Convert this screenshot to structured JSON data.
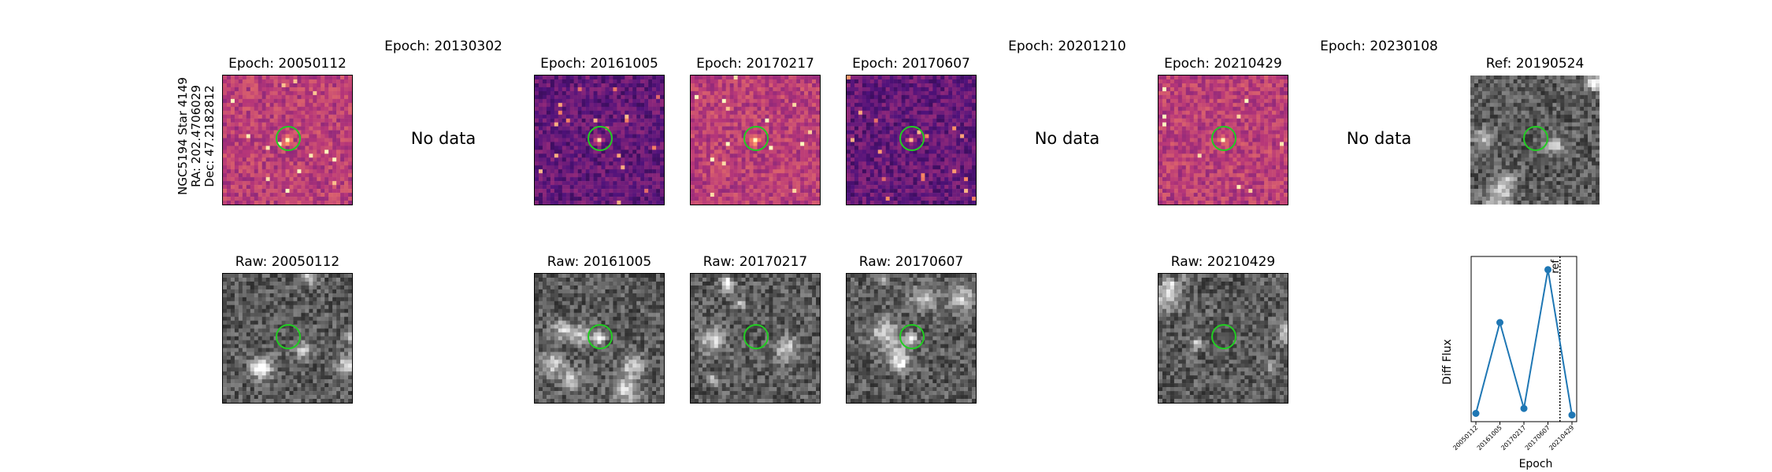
{
  "star": {
    "name": "NGC5194 Star 4149",
    "ra": "RA: 202.4706029",
    "dec": "Dec: 47.2182812"
  },
  "top_titles": {
    "e1": "Epoch: 20050112",
    "e2": "Epoch: 20130302",
    "e3": "Epoch: 20161005",
    "e4": "Epoch: 20170217",
    "e5": "Epoch: 20170607",
    "e6": "Epoch: 20201210",
    "e7": "Epoch: 20210429",
    "e8": "Epoch: 20230108",
    "ref": "Ref: 20190524"
  },
  "no_data": "No data",
  "raw_titles": {
    "r1": "Raw: 20050112",
    "r3": "Raw: 20161005",
    "r4": "Raw: 20170217",
    "r5": "Raw: 20170607",
    "r7": "Raw: 20210429"
  },
  "chart_data": {
    "type": "line",
    "title": "",
    "xlabel": "Epoch",
    "ylabel": "Diff Flux",
    "categories": [
      "20050112",
      "20161005",
      "20170217",
      "20170607",
      "20210429"
    ],
    "values": [
      0.05,
      0.6,
      0.08,
      0.92,
      0.04
    ],
    "ylim": [
      0,
      1
    ],
    "ref_line": {
      "after": "20170607",
      "label": "ref"
    },
    "color": "#1f77b4"
  },
  "colors": {
    "marker_circle": "#22cc22",
    "series": "#1f77b4"
  }
}
